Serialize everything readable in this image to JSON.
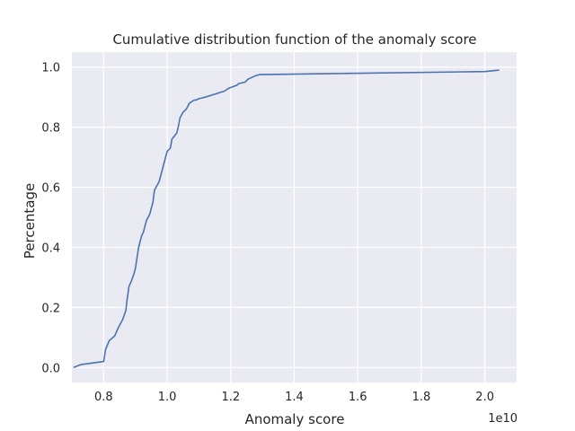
{
  "chart_data": {
    "type": "line",
    "title": "Cumulative distribution function of the anomaly score",
    "xlabel": "Anomaly score",
    "ylabel": "Percentage",
    "x_scale_label": "1e10",
    "xlim": [
      0.7,
      2.1
    ],
    "ylim": [
      -0.05,
      1.05
    ],
    "x_ticks": [
      0.8,
      1.0,
      1.2,
      1.4,
      1.6,
      1.8,
      2.0
    ],
    "x_tick_labels": [
      "0.8",
      "1.0",
      "1.2",
      "1.4",
      "1.6",
      "1.8",
      "2.0"
    ],
    "y_ticks": [
      0.0,
      0.2,
      0.4,
      0.6,
      0.8,
      1.0
    ],
    "y_tick_labels": [
      "0.0",
      "0.2",
      "0.4",
      "0.6",
      "0.8",
      "1.0"
    ],
    "grid": true,
    "background": "#EAEAF2",
    "line_color": "#4C72B0",
    "series": [
      {
        "x": [
          0.705,
          0.73,
          0.8,
          0.806,
          0.818,
          0.835,
          0.845,
          0.85,
          0.86,
          0.87,
          0.873,
          0.88,
          0.888,
          0.895,
          0.9,
          0.91,
          0.915,
          0.92,
          0.925,
          0.93,
          0.935,
          0.945,
          0.95,
          0.955,
          0.96,
          0.965,
          0.97,
          0.975,
          0.98,
          0.985,
          0.99,
          0.995,
          1.0,
          1.01,
          1.015,
          1.03,
          1.035,
          1.04,
          1.045,
          1.05,
          1.06,
          1.065,
          1.07,
          1.085,
          1.09,
          1.1,
          1.12,
          1.18,
          1.195,
          1.22,
          1.225,
          1.245,
          1.255,
          1.275,
          1.29,
          2.0,
          2.045
        ],
        "y": [
          0.0,
          0.01,
          0.02,
          0.06,
          0.09,
          0.105,
          0.13,
          0.14,
          0.16,
          0.19,
          0.22,
          0.27,
          0.29,
          0.31,
          0.33,
          0.4,
          0.42,
          0.44,
          0.45,
          0.47,
          0.49,
          0.51,
          0.53,
          0.55,
          0.59,
          0.6,
          0.61,
          0.62,
          0.64,
          0.66,
          0.68,
          0.7,
          0.72,
          0.73,
          0.76,
          0.78,
          0.8,
          0.83,
          0.84,
          0.85,
          0.86,
          0.87,
          0.88,
          0.89,
          0.89,
          0.895,
          0.9,
          0.92,
          0.93,
          0.94,
          0.945,
          0.95,
          0.96,
          0.97,
          0.975,
          0.985,
          0.99
        ]
      }
    ]
  }
}
